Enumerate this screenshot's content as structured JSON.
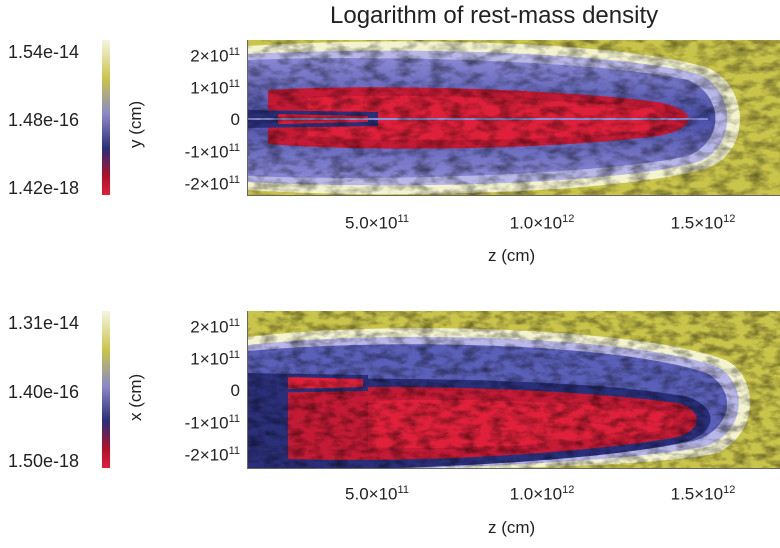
{
  "title": "Logarithm of rest-mass density",
  "top_panel": {
    "colorbar_labels": [
      "1.54e-14",
      "1.48e-16",
      "1.42e-18"
    ],
    "ylabel": "y (cm)",
    "yticks": [
      "2×10",
      "1×10",
      "0",
      "-1×10",
      "-2×10"
    ],
    "ytick_exp": [
      "11",
      "11",
      "",
      "11",
      "11"
    ],
    "xticks": [
      "5.0×10",
      "1.0×10",
      "1.5×10"
    ],
    "xtick_exp": [
      "11",
      "12",
      "12"
    ],
    "xlabel": "z (cm)"
  },
  "bottom_panel": {
    "colorbar_labels": [
      "1.31e-14",
      "1.40e-16",
      "1.50e-18"
    ],
    "ylabel": "x (cm)",
    "yticks": [
      "2×10",
      "1×10",
      "0",
      "-1×10",
      "-2×10"
    ],
    "ytick_exp": [
      "11",
      "11",
      "",
      "11",
      "11"
    ],
    "xticks": [
      "5.0×10",
      "1.0×10",
      "1.5×10"
    ],
    "xtick_exp": [
      "11",
      "12",
      "12"
    ],
    "xlabel": "z (cm)"
  },
  "colors": {
    "background": "#c9c44a",
    "cocoon_edge": "#f0f0c8",
    "cocoon": "#7b7bd9",
    "jet_dark": "#2a2f7a",
    "jet_core": "#e0203a"
  }
}
